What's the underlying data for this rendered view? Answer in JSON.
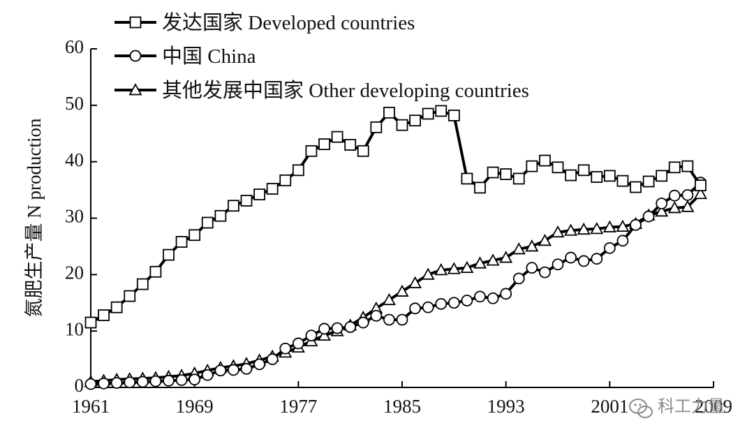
{
  "chart_data": {
    "type": "line",
    "ylabel": "氮肥生产量 N production",
    "xlabel": "",
    "xlim": [
      1961,
      2009
    ],
    "ylim": [
      0,
      60
    ],
    "x_ticks": [
      1961,
      1969,
      1977,
      1985,
      1993,
      2001,
      2009
    ],
    "y_ticks": [
      0,
      10,
      20,
      30,
      40,
      50,
      60
    ],
    "legend_position": "top-left",
    "x": [
      1961,
      1962,
      1963,
      1964,
      1965,
      1966,
      1967,
      1968,
      1969,
      1970,
      1971,
      1972,
      1973,
      1974,
      1975,
      1976,
      1977,
      1978,
      1979,
      1980,
      1981,
      1982,
      1983,
      1984,
      1985,
      1986,
      1987,
      1988,
      1989,
      1990,
      1991,
      1992,
      1993,
      1994,
      1995,
      1996,
      1997,
      1998,
      1999,
      2000,
      2001,
      2002,
      2003,
      2004,
      2005,
      2006,
      2007,
      2008
    ],
    "series": [
      {
        "name": "发达国家 Developed countries",
        "marker": "square",
        "values": [
          11.5,
          12.8,
          14.2,
          16.2,
          18.3,
          20.5,
          23.5,
          25.8,
          27.0,
          29.2,
          30.4,
          32.2,
          33.1,
          34.2,
          35.2,
          36.7,
          38.5,
          41.9,
          43.1,
          44.4,
          43.0,
          41.9,
          46.1,
          48.7,
          46.5,
          47.3,
          48.5,
          49.0,
          48.2,
          37.0,
          35.4,
          38.1,
          37.8,
          37.0,
          39.2,
          40.2,
          39.0,
          37.6,
          38.5,
          37.3,
          37.5,
          36.6,
          35.5,
          36.5,
          37.5,
          39.0,
          39.2,
          35.8
        ]
      },
      {
        "name": "中国 China",
        "marker": "circle",
        "values": [
          0.6,
          0.7,
          0.8,
          0.9,
          1.0,
          1.1,
          1.2,
          1.3,
          1.4,
          2.2,
          3.0,
          3.1,
          3.3,
          4.1,
          5.0,
          6.9,
          7.8,
          9.2,
          10.4,
          10.5,
          10.7,
          11.5,
          12.7,
          12.0,
          12.0,
          14.0,
          14.2,
          14.8,
          15.0,
          15.4,
          16.1,
          15.8,
          16.6,
          19.3,
          21.2,
          20.4,
          21.8,
          23.0,
          22.4,
          22.8,
          24.7,
          26.0,
          28.8,
          30.3,
          32.6,
          34.0,
          34.1,
          36.3
        ]
      },
      {
        "name": "其他发展中国家 Other developing countries",
        "marker": "triangle",
        "values": [
          1.0,
          1.2,
          1.4,
          1.5,
          1.6,
          1.7,
          1.9,
          2.1,
          2.5,
          3.0,
          3.5,
          3.8,
          4.2,
          4.8,
          5.5,
          6.2,
          7.1,
          8.2,
          9.2,
          10.0,
          11.0,
          12.4,
          14.0,
          15.5,
          17.0,
          18.5,
          20.0,
          20.8,
          21.0,
          21.2,
          22.0,
          22.5,
          23.0,
          24.5,
          25.0,
          26.0,
          27.5,
          27.8,
          28.0,
          28.1,
          28.4,
          28.5,
          29.0,
          30.5,
          31.2,
          31.8,
          32.0,
          34.3
        ]
      }
    ]
  },
  "watermark": {
    "text": "科工力量",
    "icon": "wechat-icon"
  }
}
